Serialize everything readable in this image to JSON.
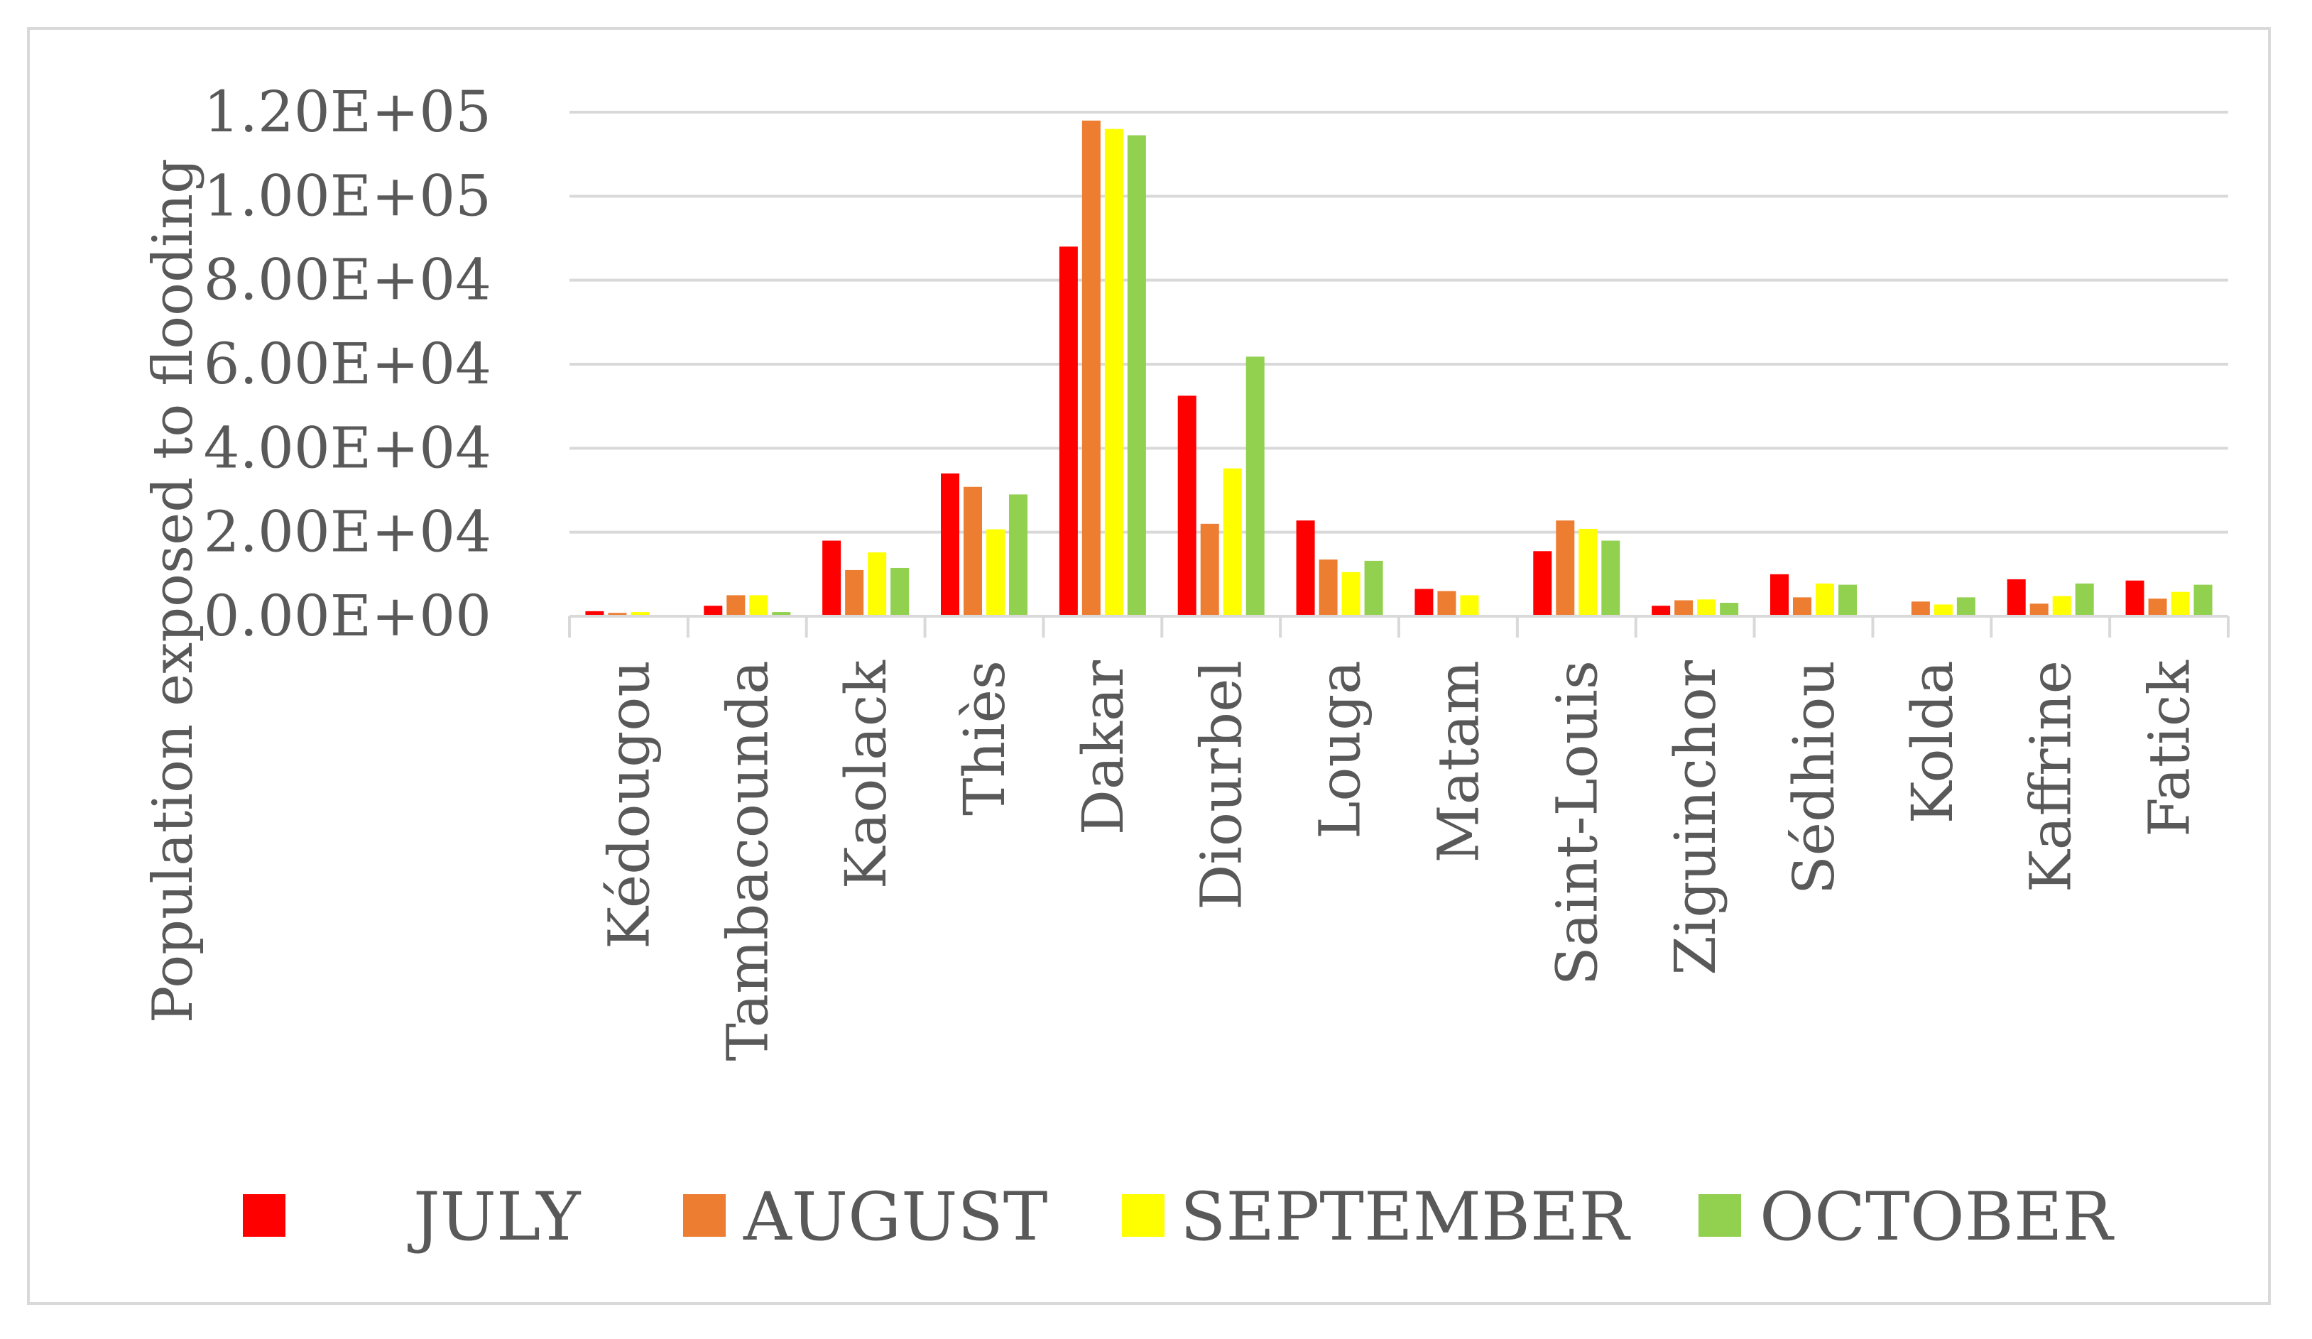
{
  "chart_data": {
    "type": "bar",
    "ylabel": "Population exposed to flooding",
    "ylim": [
      0,
      120000
    ],
    "yticks": [
      "0.00E+00",
      "2.00E+04",
      "4.00E+04",
      "6.00E+04",
      "8.00E+04",
      "1.00E+05",
      "1.20E+05"
    ],
    "grid": true,
    "legend_position": "bottom",
    "categories": [
      "Kédougou",
      "Tambacounda",
      "Kaolack",
      "Thiès",
      "Dakar",
      "Diourbel",
      "Louga",
      "Matam",
      "Saint-Louis",
      "Ziguinchor",
      "Sédhiou",
      "Kolda",
      "Kaffrine",
      "Fatick"
    ],
    "series": [
      {
        "name": "JULY",
        "color": "#ff0000",
        "values": [
          1200,
          2500,
          18000,
          34000,
          88000,
          52500,
          22800,
          6500,
          15500,
          2500,
          10000,
          0,
          8800,
          8500
        ]
      },
      {
        "name": "AUGUST",
        "color": "#ed7d31",
        "values": [
          800,
          5000,
          11000,
          30800,
          118000,
          22000,
          13500,
          6000,
          22800,
          3800,
          4500,
          3500,
          3000,
          4200
        ]
      },
      {
        "name": "SEPTEMBER",
        "color": "#ffff00",
        "values": [
          1000,
          5000,
          15200,
          20700,
          116000,
          35200,
          10500,
          5000,
          20800,
          4000,
          7800,
          2800,
          4800,
          5800
        ]
      },
      {
        "name": "OCTOBER",
        "color": "#92d050",
        "values": [
          0,
          1000,
          11500,
          29000,
          114500,
          61800,
          13200,
          0,
          18000,
          3200,
          7500,
          4500,
          7800,
          7500
        ]
      }
    ]
  }
}
